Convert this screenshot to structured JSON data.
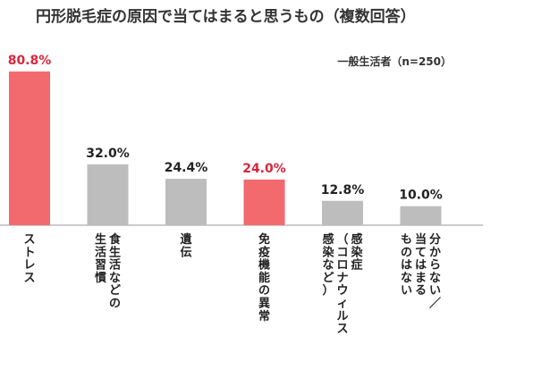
{
  "chart_data": {
    "type": "bar",
    "title": "円形脱毛症の原因で当てはまると思うもの（複数回答）",
    "legend": "一般生活者（n=250）",
    "unit": "%",
    "categories": [
      [
        "ストレス"
      ],
      [
        "食生活などの",
        "生活習慣"
      ],
      [
        "遺伝"
      ],
      [
        "免疫機能の異常"
      ],
      [
        "感染症",
        "（コロナウィルス",
        "感染など）"
      ],
      [
        "分からない／",
        "当てはまる",
        "ものはない"
      ]
    ],
    "values": [
      80.8,
      32.0,
      24.4,
      24.0,
      12.8,
      10.0
    ],
    "value_labels": [
      "80.8%",
      "32.0%",
      "24.4%",
      "24.0%",
      "12.8%",
      "10.0%"
    ],
    "highlighted": [
      true,
      false,
      false,
      true,
      false,
      false
    ],
    "ylim": [
      0,
      80.8
    ],
    "colors": {
      "highlight": "#f26a6e",
      "normal": "#bdbdbd",
      "highlight_text": "#d9263a",
      "normal_text": "#222222",
      "axis": "#999999"
    }
  }
}
